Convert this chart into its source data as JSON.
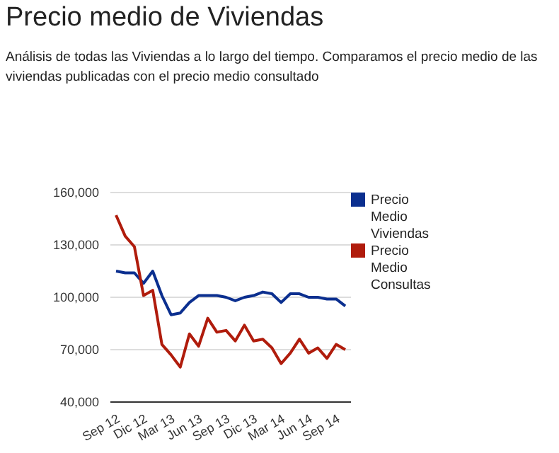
{
  "chart_data": {
    "type": "line",
    "title": "Precio medio de Viviendas",
    "subtitle": "Análisis de todas las Viviendas a lo largo del tiempo. Comparamos el precio medio de las viviendas publicadas con el precio medio consultado",
    "categories": [
      "Sep 12",
      null,
      null,
      "Dic 12",
      null,
      null,
      "Mar 13",
      null,
      null,
      "Jun 13",
      null,
      null,
      "Sep 13",
      null,
      null,
      "Dic 13",
      null,
      null,
      "Mar 14",
      null,
      null,
      "Jun 14",
      null,
      null,
      "Sep 14",
      null
    ],
    "series": [
      {
        "name": "Precio Medio Viviendas",
        "color": "#0b2f8f",
        "values": [
          115000,
          114000,
          114000,
          108000,
          115000,
          101000,
          90000,
          91000,
          97000,
          101000,
          101000,
          101000,
          100000,
          98000,
          100000,
          101000,
          103000,
          102000,
          97000,
          102000,
          102000,
          100000,
          100000,
          99000,
          99000,
          95000
        ]
      },
      {
        "name": "Precio Medio Consultas",
        "color": "#b01c0c",
        "values": [
          147000,
          135000,
          129000,
          101000,
          104000,
          73000,
          67000,
          60000,
          79000,
          72000,
          88000,
          80000,
          81000,
          75000,
          84000,
          75000,
          76000,
          71000,
          62000,
          68000,
          76000,
          68000,
          71000,
          65000,
          73000,
          70000
        ]
      }
    ],
    "ylim": [
      40000,
      160000
    ],
    "yticks": [
      {
        "value": 40000,
        "label": "40,000"
      },
      {
        "value": 70000,
        "label": "70,000"
      },
      {
        "value": 100000,
        "label": "100,000"
      },
      {
        "value": 130000,
        "label": "130,000"
      },
      {
        "value": 160000,
        "label": "160,000"
      }
    ],
    "grid": "y",
    "legend": "top right",
    "marker": "none"
  }
}
